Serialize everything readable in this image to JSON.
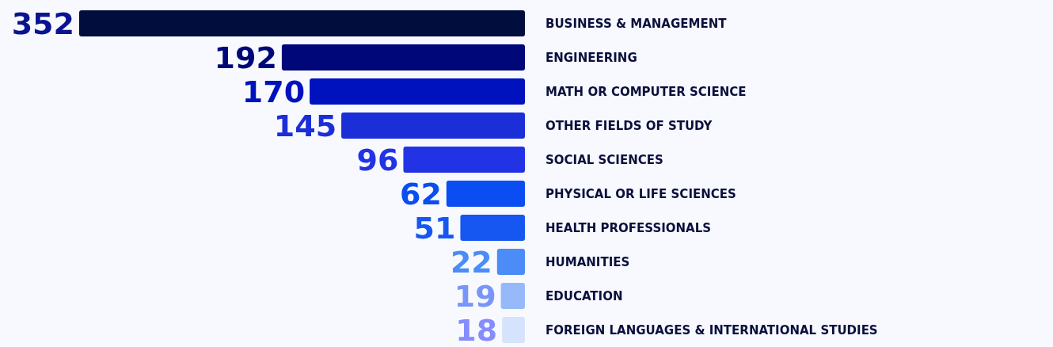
{
  "chart_data": {
    "type": "bar",
    "orientation": "horizontal",
    "categories": [
      "BUSINESS & MANAGEMENT",
      "ENGINEERING",
      "MATH OR COMPUTER SCIENCE",
      "OTHER FIELDS OF STUDY",
      "SOCIAL SCIENCES",
      "PHYSICAL OR LIFE SCIENCES",
      "HEALTH PROFESSIONALS",
      "HUMANITIES",
      "EDUCATION",
      "FOREIGN LANGUAGES & INTERNATIONAL STUDIES"
    ],
    "values": [
      352,
      192,
      170,
      145,
      96,
      62,
      51,
      22,
      19,
      18
    ],
    "colors": [
      "#000d3d",
      "#000778",
      "#0012bd",
      "#1c2ed8",
      "#2233e6",
      "#0a4df0",
      "#1557f0",
      "#4b8cf6",
      "#96baf9",
      "#d6e3fc"
    ],
    "data_labels": true
  }
}
